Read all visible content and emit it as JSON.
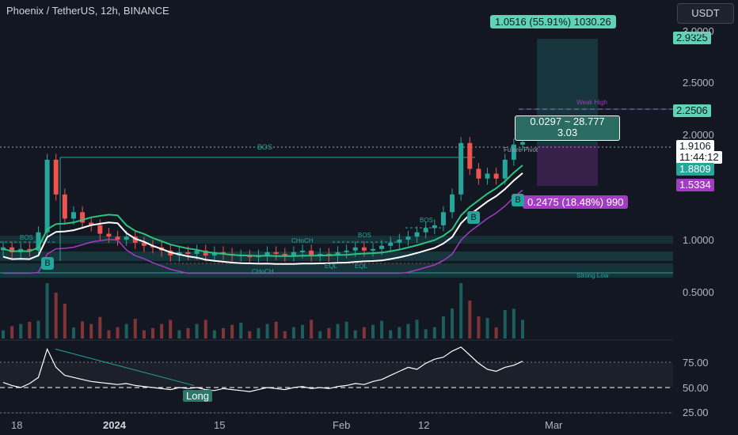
{
  "header": {
    "symbol_line": "Phoenix / TetherUS, 12h, BINANCE",
    "currency_button": "USDT"
  },
  "price_tags": {
    "top_right": "2.9325",
    "weak_high_level": "2.2506",
    "current_price": "1.9106",
    "countdown": "11:44:12",
    "ma_green": "1.8809",
    "ma_purple": "1.5334"
  },
  "position": {
    "target_label": "1.0516 (55.91%) 1030.26",
    "stop_label": "0.2475 (18.48%) 990",
    "ratio_line1": "0.0297 ~ 28.777",
    "ratio_line2": "3.03"
  },
  "annotations": {
    "bos": [
      "BOS",
      "BOS",
      "BOS",
      "BOS"
    ],
    "choch": [
      "CHoCH",
      "CHoCH"
    ],
    "eql": [
      "EQL",
      "EQL"
    ],
    "weak_high": "Weak High",
    "strong_low": "Strong Low",
    "future_pivot": "Future Pivot",
    "buy_signal": "B",
    "rsi_long_label": "Long"
  },
  "colors": {
    "background": "#131722",
    "bull": "#26a69a",
    "bear": "#ef5350",
    "accent_teal": "#5fd3b5",
    "accent_purple": "#a23cc3",
    "rsi_line": "#ffffff"
  },
  "chart_data": {
    "type": "candlestick",
    "scale": "log",
    "y_axis_ticks": [
      "3.0000",
      "2.5000",
      "2.0000",
      "1.0000",
      "0.5000"
    ],
    "x_axis_ticks": [
      "18",
      "2024",
      "15",
      "Feb",
      "12",
      "Mar"
    ],
    "rsi_axis_ticks": [
      "75.00",
      "50.00",
      "25.00"
    ],
    "price_path": [
      0.95,
      0.92,
      0.94,
      0.93,
      1.05,
      1.7,
      1.35,
      1.15,
      1.2,
      1.12,
      1.1,
      1.04,
      1.02,
      1.0,
      1.02,
      0.98,
      0.96,
      0.95,
      0.93,
      0.9,
      0.92,
      0.91,
      0.93,
      0.9,
      0.92,
      0.91,
      0.9,
      0.9,
      0.89,
      0.9,
      0.92,
      0.91,
      0.9,
      0.92,
      0.93,
      0.9,
      0.91,
      0.9,
      0.92,
      0.93,
      0.95,
      0.93,
      0.94,
      0.96,
      0.98,
      1.0,
      1.02,
      1.05,
      1.08,
      1.1,
      1.2,
      1.35,
      1.9,
      1.6,
      1.5,
      1.55,
      1.5,
      1.7,
      1.88,
      1.91
    ],
    "rsi_path": [
      55,
      52,
      50,
      54,
      60,
      88,
      70,
      62,
      60,
      58,
      56,
      55,
      54,
      53,
      54,
      52,
      51,
      50,
      49,
      48,
      50,
      49,
      50,
      48,
      47,
      49,
      48,
      47,
      46,
      48,
      50,
      49,
      48,
      50,
      51,
      49,
      50,
      49,
      51,
      52,
      54,
      53,
      56,
      58,
      62,
      66,
      70,
      68,
      74,
      78,
      80,
      86,
      90,
      82,
      74,
      68,
      66,
      70,
      72,
      76
    ]
  }
}
